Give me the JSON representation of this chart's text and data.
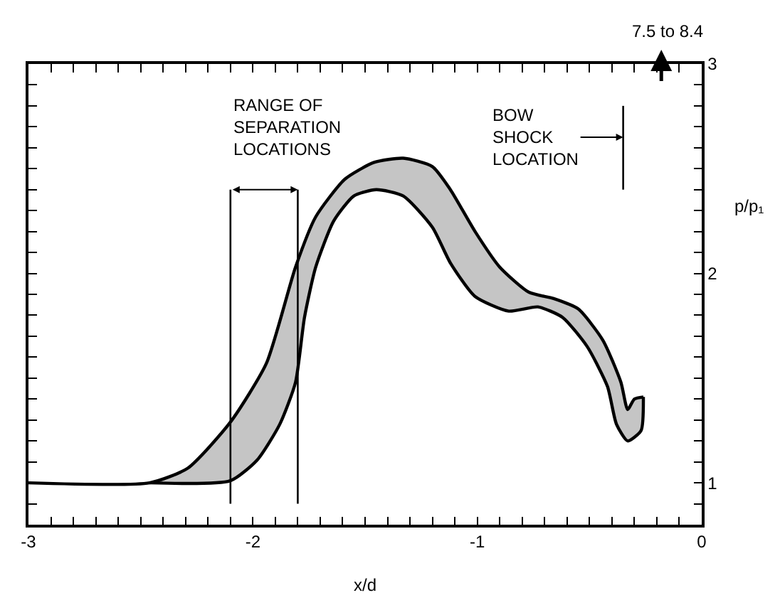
{
  "chart_data": {
    "type": "line",
    "xlabel": "x/d",
    "ylabel": "p/p₁",
    "xlim": [
      -3,
      0
    ],
    "ylim": [
      0.8,
      3
    ],
    "xticks": [
      -3,
      {
        "value": -2.9,
        "label": null
      },
      {
        "value": -2.8,
        "label": null
      },
      {
        "value": -2.7,
        "label": null
      },
      {
        "value": -2.6,
        "label": null
      },
      {
        "value": -2.5,
        "label": null
      },
      {
        "value": -2.4,
        "label": null
      },
      {
        "value": -2.3,
        "label": null
      },
      {
        "value": -2.2,
        "label": null
      },
      {
        "value": -2.1,
        "label": null
      },
      -2,
      {
        "value": -1.9,
        "label": null
      },
      {
        "value": -1.8,
        "label": null
      },
      {
        "value": -1.7,
        "label": null
      },
      {
        "value": -1.6,
        "label": null
      },
      {
        "value": -1.5,
        "label": null
      },
      {
        "value": -1.4,
        "label": null
      },
      {
        "value": -1.3,
        "label": null
      },
      {
        "value": -1.2,
        "label": null
      },
      {
        "value": -1.1,
        "label": null
      },
      -1,
      {
        "value": -0.9,
        "label": null
      },
      {
        "value": -0.8,
        "label": null
      },
      {
        "value": -0.7,
        "label": null
      },
      {
        "value": -0.6,
        "label": null
      },
      {
        "value": -0.5,
        "label": null
      },
      {
        "value": -0.4,
        "label": null
      },
      {
        "value": -0.3,
        "label": null
      },
      {
        "value": -0.2,
        "label": null
      },
      {
        "value": -0.1,
        "label": null
      },
      0
    ],
    "yticks": [
      {
        "value": 0.9,
        "label": null
      },
      1,
      {
        "value": 1.1,
        "label": null
      },
      {
        "value": 1.2,
        "label": null
      },
      {
        "value": 1.3,
        "label": null
      },
      {
        "value": 1.4,
        "label": null
      },
      {
        "value": 1.5,
        "label": null
      },
      {
        "value": 1.6,
        "label": null
      },
      {
        "value": 1.7,
        "label": null
      },
      {
        "value": 1.8,
        "label": null
      },
      {
        "value": 1.9,
        "label": null
      },
      2,
      {
        "value": 2.1,
        "label": null
      },
      {
        "value": 2.2,
        "label": null
      },
      {
        "value": 2.3,
        "label": null
      },
      {
        "value": 2.4,
        "label": null
      },
      {
        "value": 2.5,
        "label": null
      },
      {
        "value": 2.6,
        "label": null
      },
      {
        "value": 2.7,
        "label": null
      },
      {
        "value": 2.8,
        "label": null
      },
      {
        "value": 2.9,
        "label": null
      },
      3
    ],
    "marker": "none",
    "line_style": "solid",
    "series": [
      {
        "color": "#000000",
        "x": [
          -3,
          -2.46,
          -2.29,
          -2.1,
          -1.94,
          -1.81,
          -1.72,
          -1.59,
          -1.46,
          -1.33,
          -1.2,
          -1.12,
          -1.01,
          -0.9,
          -0.77,
          -0.66,
          -0.55,
          -0.44,
          -0.36,
          -0.33,
          -0.3,
          -0.26
        ],
        "values": [
          1.0,
          1.0,
          1.07,
          1.29,
          1.57,
          2.03,
          2.27,
          2.45,
          2.53,
          2.55,
          2.51,
          2.4,
          2.2,
          2.03,
          1.91,
          1.88,
          1.83,
          1.68,
          1.48,
          1.35,
          1.4,
          1.41
        ]
      },
      {
        "color": "#000000",
        "x": [
          -2.46,
          -2.1,
          -1.98,
          -1.88,
          -1.81,
          -1.77,
          -1.72,
          -1.64,
          -1.55,
          -1.45,
          -1.33,
          -1.2,
          -1.12,
          -1.01,
          -0.86,
          -0.73,
          -0.62,
          -0.51,
          -0.42,
          -0.38,
          -0.33,
          -0.27,
          -0.26
        ],
        "values": [
          1.0,
          1.01,
          1.11,
          1.28,
          1.48,
          1.79,
          2.03,
          2.25,
          2.37,
          2.4,
          2.37,
          2.22,
          2.05,
          1.89,
          1.82,
          1.84,
          1.79,
          1.65,
          1.46,
          1.28,
          1.2,
          1.25,
          1.41
        ]
      }
    ],
    "ref_lines": [
      {
        "axis": "x",
        "value": -2.1,
        "color": "#000000"
      },
      {
        "axis": "x",
        "value": -1.8,
        "color": "#000000"
      },
      {
        "axis": "x",
        "value": -0.35,
        "label": "BOW\nSHOCK\nLOCATION",
        "color": "#000000"
      }
    ],
    "annotations": [
      "RANGE OF\nSEPARATION\nLOCATIONS",
      "7.5 to 8.4"
    ]
  }
}
